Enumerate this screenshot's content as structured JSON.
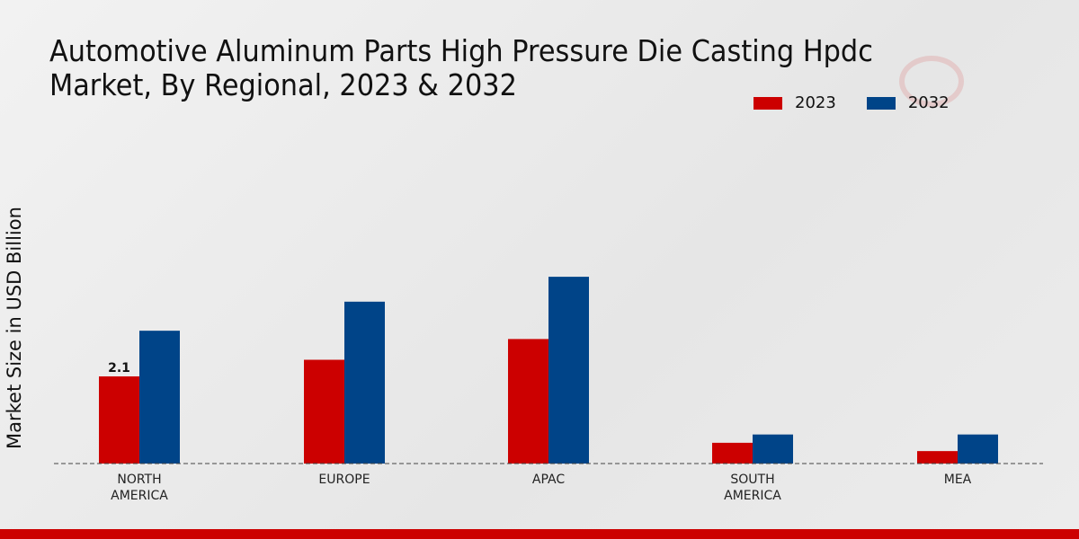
{
  "chart_data": {
    "type": "bar",
    "title": "Automotive Aluminum Parts High Pressure Die Casting Hpdc Market, By Regional, 2023 & 2032",
    "ylabel": "Market Size in USD Billion",
    "xlabel": "",
    "categories": [
      "NORTH\nAMERICA",
      "EUROPE",
      "APAC",
      "SOUTH\nAMERICA",
      "MEA"
    ],
    "series": [
      {
        "name": "2023",
        "color": "#cc0000",
        "values": [
          2.1,
          2.5,
          3.0,
          0.5,
          0.3
        ]
      },
      {
        "name": "2032",
        "color": "#004488",
        "values": [
          3.2,
          3.9,
          4.5,
          0.7,
          0.7
        ]
      }
    ],
    "data_labels": [
      {
        "series": "2023",
        "category_index": 0,
        "text": "2.1"
      }
    ],
    "ylim": [
      0,
      9
    ],
    "legend_position": "top-right",
    "grid": false
  }
}
